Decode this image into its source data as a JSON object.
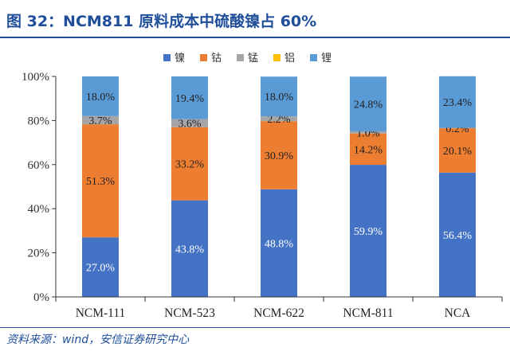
{
  "title": "图 32：NCM811 原料成本中硫酸镍占 60%",
  "source": "资料来源：wind，安信证券研究中心",
  "colors": {
    "heading": "#1f4e9a",
    "axis": "#333333"
  },
  "chart_data": {
    "type": "bar",
    "stacked": true,
    "categories": [
      "NCM-111",
      "NCM-523",
      "NCM-622",
      "NCM-811",
      "NCA"
    ],
    "ylim": [
      0,
      100
    ],
    "yticks": [
      "0%",
      "20%",
      "40%",
      "60%",
      "80%",
      "100%"
    ],
    "grid": false,
    "legend_position": "top",
    "series": [
      {
        "name": "镍",
        "color": "#4472c4",
        "values": [
          27.0,
          43.8,
          48.8,
          59.9,
          56.4
        ],
        "labels": [
          "27.0%",
          "43.8%",
          "48.8%",
          "59.9%",
          "56.4%"
        ],
        "label_color": "#ffffff"
      },
      {
        "name": "钴",
        "color": "#ed7d31",
        "values": [
          51.3,
          33.2,
          30.9,
          14.2,
          20.1
        ],
        "labels": [
          "51.3%",
          "33.2%",
          "30.9%",
          "14.2%",
          "20.1%"
        ],
        "label_color": "#222222"
      },
      {
        "name": "锰",
        "color": "#a5a5a5",
        "values": [
          3.7,
          3.6,
          2.2,
          1.0,
          0.2
        ],
        "labels": [
          "3.7%",
          "3.6%",
          "2.2%",
          "1.0%",
          "0.2%"
        ],
        "label_color": "#222222"
      },
      {
        "name": "铝",
        "color": "#ffc000",
        "values": [
          0,
          0,
          0,
          0,
          0
        ],
        "labels": [
          "",
          "",
          "",
          "",
          ""
        ],
        "label_color": "#222222"
      },
      {
        "name": "锂",
        "color": "#5b9bd5",
        "values": [
          18.0,
          19.4,
          18.0,
          24.8,
          23.4
        ],
        "labels": [
          "18.0%",
          "19.4%",
          "18.0%",
          "24.8%",
          "23.4%"
        ],
        "label_color": "#222222"
      }
    ]
  }
}
